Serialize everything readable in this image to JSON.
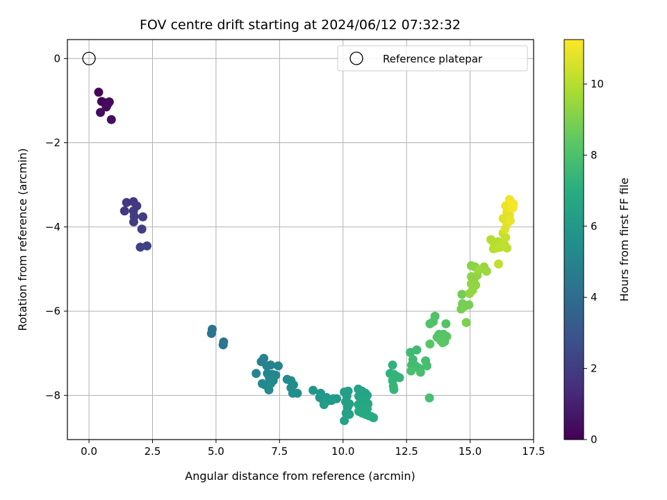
{
  "chart_data": {
    "type": "scatter",
    "title": "FOV centre drift starting at 2024/06/12 07:32:32",
    "xlabel": "Angular distance from reference (arcmin)",
    "ylabel": "Rotation from reference (arcmin)",
    "xlim": [
      -0.85,
      17.5
    ],
    "ylim": [
      -9.05,
      0.45
    ],
    "xticks": [
      {
        "value": 0.0,
        "label": "0.0"
      },
      {
        "value": 2.5,
        "label": "2.5"
      },
      {
        "value": 5.0,
        "label": "5.0"
      },
      {
        "value": 7.5,
        "label": "7.5"
      },
      {
        "value": 10.0,
        "label": "10.0"
      },
      {
        "value": 12.5,
        "label": "12.5"
      },
      {
        "value": 15.0,
        "label": "15.0"
      },
      {
        "value": 17.5,
        "label": "17.5"
      }
    ],
    "yticks": [
      {
        "value": 0,
        "label": "0"
      },
      {
        "value": -2,
        "label": "−2"
      },
      {
        "value": -4,
        "label": "−4"
      },
      {
        "value": -6,
        "label": "−6"
      },
      {
        "value": -8,
        "label": "−8"
      }
    ],
    "grid": true,
    "legend": {
      "placement": "top-right",
      "entries": [
        {
          "label": "Reference platepar",
          "marker": "open-circle"
        }
      ]
    },
    "reference_point": {
      "x": 0.0,
      "y": 0.0
    },
    "colorbar": {
      "label": "Hours from first FF file",
      "colormap": "viridis",
      "range": [
        0,
        11.25
      ],
      "ticks": [
        {
          "value": 0,
          "label": "0"
        },
        {
          "value": 2,
          "label": "2"
        },
        {
          "value": 4,
          "label": "4"
        },
        {
          "value": 6,
          "label": "6"
        },
        {
          "value": 8,
          "label": "8"
        },
        {
          "value": 10,
          "label": "10"
        }
      ]
    },
    "points": [
      {
        "x": 0.38,
        "y": -0.8,
        "h": 0.1
      },
      {
        "x": 0.5,
        "y": -1.02,
        "h": 0.15
      },
      {
        "x": 0.62,
        "y": -1.05,
        "h": 0.2
      },
      {
        "x": 0.72,
        "y": -1.1,
        "h": 0.25
      },
      {
        "x": 0.8,
        "y": -1.03,
        "h": 0.3
      },
      {
        "x": 0.45,
        "y": -1.28,
        "h": 0.35
      },
      {
        "x": 0.88,
        "y": -1.45,
        "h": 0.4
      },
      {
        "x": 0.68,
        "y": -1.15,
        "h": 0.3
      },
      {
        "x": 1.48,
        "y": -3.42,
        "h": 1.8
      },
      {
        "x": 1.75,
        "y": -3.4,
        "h": 1.85
      },
      {
        "x": 1.88,
        "y": -3.5,
        "h": 1.9
      },
      {
        "x": 1.4,
        "y": -3.62,
        "h": 1.9
      },
      {
        "x": 1.75,
        "y": -3.62,
        "h": 1.95
      },
      {
        "x": 1.78,
        "y": -3.75,
        "h": 2.0
      },
      {
        "x": 1.76,
        "y": -3.88,
        "h": 2.0
      },
      {
        "x": 2.12,
        "y": -3.76,
        "h": 2.05
      },
      {
        "x": 2.08,
        "y": -4.05,
        "h": 2.1
      },
      {
        "x": 2.02,
        "y": -4.48,
        "h": 2.2
      },
      {
        "x": 2.28,
        "y": -4.45,
        "h": 2.25
      },
      {
        "x": 4.85,
        "y": -6.43,
        "h": 4.3
      },
      {
        "x": 4.82,
        "y": -6.53,
        "h": 4.35
      },
      {
        "x": 5.3,
        "y": -6.73,
        "h": 4.4
      },
      {
        "x": 5.28,
        "y": -6.8,
        "h": 4.45
      },
      {
        "x": 6.88,
        "y": -7.12,
        "h": 5.0
      },
      {
        "x": 6.78,
        "y": -7.2,
        "h": 5.0
      },
      {
        "x": 7.0,
        "y": -7.3,
        "h": 5.05
      },
      {
        "x": 7.15,
        "y": -7.28,
        "h": 5.05
      },
      {
        "x": 7.45,
        "y": -7.3,
        "h": 5.1
      },
      {
        "x": 6.58,
        "y": -7.48,
        "h": 5.1
      },
      {
        "x": 7.02,
        "y": -7.48,
        "h": 5.15
      },
      {
        "x": 7.22,
        "y": -7.5,
        "h": 5.15
      },
      {
        "x": 7.35,
        "y": -7.52,
        "h": 5.2
      },
      {
        "x": 7.1,
        "y": -7.58,
        "h": 5.2
      },
      {
        "x": 7.25,
        "y": -7.65,
        "h": 5.25
      },
      {
        "x": 6.82,
        "y": -7.72,
        "h": 5.25
      },
      {
        "x": 6.92,
        "y": -7.75,
        "h": 5.3
      },
      {
        "x": 7.15,
        "y": -7.72,
        "h": 5.3
      },
      {
        "x": 7.08,
        "y": -7.87,
        "h": 5.35
      },
      {
        "x": 7.8,
        "y": -7.62,
        "h": 5.4
      },
      {
        "x": 7.95,
        "y": -7.65,
        "h": 5.45
      },
      {
        "x": 8.05,
        "y": -7.75,
        "h": 5.5
      },
      {
        "x": 7.95,
        "y": -7.82,
        "h": 5.5
      },
      {
        "x": 8.02,
        "y": -7.95,
        "h": 5.55
      },
      {
        "x": 8.2,
        "y": -7.95,
        "h": 5.55
      },
      {
        "x": 8.82,
        "y": -7.88,
        "h": 5.9
      },
      {
        "x": 9.12,
        "y": -7.95,
        "h": 5.95
      },
      {
        "x": 9.35,
        "y": -8.05,
        "h": 6.0
      },
      {
        "x": 9.08,
        "y": -8.05,
        "h": 6.0
      },
      {
        "x": 9.2,
        "y": -8.1,
        "h": 6.05
      },
      {
        "x": 9.45,
        "y": -8.12,
        "h": 6.05
      },
      {
        "x": 9.28,
        "y": -8.18,
        "h": 6.1
      },
      {
        "x": 9.55,
        "y": -8.12,
        "h": 6.1
      },
      {
        "x": 9.75,
        "y": -8.08,
        "h": 6.15
      },
      {
        "x": 9.62,
        "y": -8.08,
        "h": 6.15
      },
      {
        "x": 9.25,
        "y": -8.22,
        "h": 6.2
      },
      {
        "x": 10.05,
        "y": -7.92,
        "h": 6.3
      },
      {
        "x": 10.2,
        "y": -7.9,
        "h": 6.3
      },
      {
        "x": 10.15,
        "y": -8.02,
        "h": 6.35
      },
      {
        "x": 10.1,
        "y": -8.15,
        "h": 6.35
      },
      {
        "x": 10.25,
        "y": -8.2,
        "h": 6.4
      },
      {
        "x": 10.18,
        "y": -8.28,
        "h": 6.4
      },
      {
        "x": 10.12,
        "y": -8.42,
        "h": 6.45
      },
      {
        "x": 10.25,
        "y": -8.45,
        "h": 6.45
      },
      {
        "x": 10.05,
        "y": -8.6,
        "h": 6.5
      },
      {
        "x": 10.6,
        "y": -7.85,
        "h": 6.55
      },
      {
        "x": 10.75,
        "y": -7.9,
        "h": 6.55
      },
      {
        "x": 10.88,
        "y": -7.95,
        "h": 6.6
      },
      {
        "x": 10.95,
        "y": -8.0,
        "h": 6.6
      },
      {
        "x": 10.62,
        "y": -8.02,
        "h": 6.65
      },
      {
        "x": 10.72,
        "y": -8.1,
        "h": 6.65
      },
      {
        "x": 10.85,
        "y": -8.15,
        "h": 6.7
      },
      {
        "x": 10.98,
        "y": -8.2,
        "h": 6.7
      },
      {
        "x": 10.6,
        "y": -8.22,
        "h": 6.75
      },
      {
        "x": 10.7,
        "y": -8.28,
        "h": 6.75
      },
      {
        "x": 10.82,
        "y": -8.3,
        "h": 6.8
      },
      {
        "x": 10.95,
        "y": -8.32,
        "h": 6.8
      },
      {
        "x": 10.62,
        "y": -8.38,
        "h": 6.85
      },
      {
        "x": 10.75,
        "y": -8.42,
        "h": 6.85
      },
      {
        "x": 10.88,
        "y": -8.45,
        "h": 6.9
      },
      {
        "x": 11.0,
        "y": -8.48,
        "h": 6.9
      },
      {
        "x": 11.1,
        "y": -8.5,
        "h": 6.95
      },
      {
        "x": 11.2,
        "y": -8.53,
        "h": 6.95
      },
      {
        "x": 10.9,
        "y": -8.05,
        "h": 6.7
      },
      {
        "x": 10.78,
        "y": -8.35,
        "h": 6.8
      },
      {
        "x": 11.95,
        "y": -7.28,
        "h": 7.3
      },
      {
        "x": 11.85,
        "y": -7.48,
        "h": 7.3
      },
      {
        "x": 12.0,
        "y": -7.5,
        "h": 7.35
      },
      {
        "x": 12.12,
        "y": -7.55,
        "h": 7.35
      },
      {
        "x": 12.22,
        "y": -7.58,
        "h": 7.4
      },
      {
        "x": 11.95,
        "y": -7.65,
        "h": 7.4
      },
      {
        "x": 11.98,
        "y": -7.78,
        "h": 7.45
      },
      {
        "x": 12.0,
        "y": -7.86,
        "h": 7.45
      },
      {
        "x": 12.65,
        "y": -6.98,
        "h": 7.7
      },
      {
        "x": 12.9,
        "y": -6.92,
        "h": 7.7
      },
      {
        "x": 12.75,
        "y": -7.15,
        "h": 7.75
      },
      {
        "x": 12.7,
        "y": -7.28,
        "h": 7.75
      },
      {
        "x": 12.85,
        "y": -7.3,
        "h": 7.8
      },
      {
        "x": 12.98,
        "y": -7.35,
        "h": 7.8
      },
      {
        "x": 13.25,
        "y": -7.18,
        "h": 7.85
      },
      {
        "x": 13.3,
        "y": -7.3,
        "h": 7.85
      },
      {
        "x": 12.68,
        "y": -7.42,
        "h": 7.9
      },
      {
        "x": 13.05,
        "y": -7.45,
        "h": 7.9
      },
      {
        "x": 13.4,
        "y": -8.06,
        "h": 7.95
      },
      {
        "x": 13.42,
        "y": -6.3,
        "h": 8.1
      },
      {
        "x": 13.62,
        "y": -6.12,
        "h": 8.1
      },
      {
        "x": 13.55,
        "y": -6.25,
        "h": 8.15
      },
      {
        "x": 14.05,
        "y": -6.3,
        "h": 8.2
      },
      {
        "x": 13.78,
        "y": -6.55,
        "h": 8.2
      },
      {
        "x": 13.7,
        "y": -6.62,
        "h": 8.25
      },
      {
        "x": 13.95,
        "y": -6.55,
        "h": 8.25
      },
      {
        "x": 14.08,
        "y": -6.6,
        "h": 8.3
      },
      {
        "x": 13.85,
        "y": -6.7,
        "h": 8.3
      },
      {
        "x": 14.0,
        "y": -6.72,
        "h": 8.35
      },
      {
        "x": 13.42,
        "y": -6.78,
        "h": 8.35
      },
      {
        "x": 13.92,
        "y": -6.75,
        "h": 8.4
      },
      {
        "x": 14.68,
        "y": -5.6,
        "h": 8.8
      },
      {
        "x": 14.7,
        "y": -5.82,
        "h": 8.85
      },
      {
        "x": 14.95,
        "y": -5.85,
        "h": 8.9
      },
      {
        "x": 14.65,
        "y": -5.95,
        "h": 8.9
      },
      {
        "x": 14.8,
        "y": -5.88,
        "h": 8.95
      },
      {
        "x": 14.85,
        "y": -6.27,
        "h": 9.0
      },
      {
        "x": 15.05,
        "y": -4.92,
        "h": 9.2
      },
      {
        "x": 15.2,
        "y": -4.95,
        "h": 9.25
      },
      {
        "x": 15.05,
        "y": -5.18,
        "h": 9.3
      },
      {
        "x": 15.15,
        "y": -5.25,
        "h": 9.3
      },
      {
        "x": 15.28,
        "y": -5.15,
        "h": 9.35
      },
      {
        "x": 15.05,
        "y": -5.35,
        "h": 9.35
      },
      {
        "x": 15.22,
        "y": -5.38,
        "h": 9.4
      },
      {
        "x": 15.1,
        "y": -5.5,
        "h": 9.4
      },
      {
        "x": 14.98,
        "y": -5.58,
        "h": 9.45
      },
      {
        "x": 15.55,
        "y": -4.95,
        "h": 9.5
      },
      {
        "x": 15.65,
        "y": -5.05,
        "h": 9.55
      },
      {
        "x": 15.35,
        "y": -5.02,
        "h": 9.55
      },
      {
        "x": 15.82,
        "y": -4.3,
        "h": 10.0
      },
      {
        "x": 15.95,
        "y": -4.4,
        "h": 10.05
      },
      {
        "x": 16.1,
        "y": -4.35,
        "h": 10.05
      },
      {
        "x": 16.25,
        "y": -4.38,
        "h": 10.1
      },
      {
        "x": 15.92,
        "y": -4.52,
        "h": 10.1
      },
      {
        "x": 16.05,
        "y": -4.5,
        "h": 10.15
      },
      {
        "x": 16.2,
        "y": -4.48,
        "h": 10.15
      },
      {
        "x": 16.35,
        "y": -4.42,
        "h": 10.2
      },
      {
        "x": 16.45,
        "y": -4.5,
        "h": 10.2
      },
      {
        "x": 16.12,
        "y": -4.88,
        "h": 10.25
      },
      {
        "x": 16.4,
        "y": -4.25,
        "h": 10.3
      },
      {
        "x": 16.3,
        "y": -4.15,
        "h": 10.3
      },
      {
        "x": 16.3,
        "y": -3.8,
        "h": 10.7
      },
      {
        "x": 16.45,
        "y": -3.65,
        "h": 10.8
      },
      {
        "x": 16.55,
        "y": -3.72,
        "h": 10.8
      },
      {
        "x": 16.4,
        "y": -3.5,
        "h": 10.9
      },
      {
        "x": 16.52,
        "y": -3.55,
        "h": 10.9
      },
      {
        "x": 16.6,
        "y": -3.4,
        "h": 11.0
      },
      {
        "x": 16.55,
        "y": -3.35,
        "h": 11.05
      },
      {
        "x": 16.7,
        "y": -3.45,
        "h": 11.1
      },
      {
        "x": 16.45,
        "y": -3.92,
        "h": 10.75
      },
      {
        "x": 16.38,
        "y": -4.05,
        "h": 10.7
      },
      {
        "x": 16.68,
        "y": -3.55,
        "h": 11.15
      },
      {
        "x": 16.58,
        "y": -3.85,
        "h": 10.95
      }
    ]
  }
}
